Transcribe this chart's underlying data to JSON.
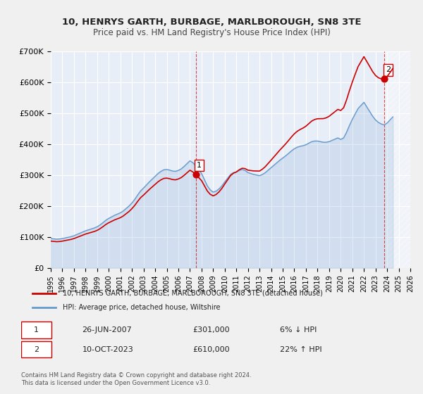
{
  "title": "10, HENRYS GARTH, BURBAGE, MARLBOROUGH, SN8 3TE",
  "subtitle": "Price paid vs. HM Land Registry's House Price Index (HPI)",
  "hpi_label": "HPI: Average price, detached house, Wiltshire",
  "property_label": "10, HENRYS GARTH, BURBAGE, MARLBOROUGH, SN8 3TE (detached house)",
  "hpi_color": "#6699cc",
  "property_color": "#cc0000",
  "background_color": "#dce6f1",
  "plot_bg_color": "#e8eef7",
  "grid_color": "#ffffff",
  "annotation1_date": "26-JUN-2007",
  "annotation1_price": "£301,000",
  "annotation1_hpi": "6% ↓ HPI",
  "annotation1_year": 2007.5,
  "annotation1_value": 301000,
  "annotation2_date": "10-OCT-2023",
  "annotation2_price": "£610,000",
  "annotation2_hpi": "22% ↑ HPI",
  "annotation2_year": 2023.78,
  "annotation2_value": 610000,
  "ylim": [
    0,
    700000
  ],
  "xlim_start": 1995,
  "xlim_end": 2026,
  "footer_text": "Contains HM Land Registry data © Crown copyright and database right 2024.\nThis data is licensed under the Open Government Licence v3.0.",
  "hpi_data": {
    "years": [
      1995.0,
      1995.25,
      1995.5,
      1995.75,
      1996.0,
      1996.25,
      1996.5,
      1996.75,
      1997.0,
      1997.25,
      1997.5,
      1997.75,
      1998.0,
      1998.25,
      1998.5,
      1998.75,
      1999.0,
      1999.25,
      1999.5,
      1999.75,
      2000.0,
      2000.25,
      2000.5,
      2000.75,
      2001.0,
      2001.25,
      2001.5,
      2001.75,
      2002.0,
      2002.25,
      2002.5,
      2002.75,
      2003.0,
      2003.25,
      2003.5,
      2003.75,
      2004.0,
      2004.25,
      2004.5,
      2004.75,
      2005.0,
      2005.25,
      2005.5,
      2005.75,
      2006.0,
      2006.25,
      2006.5,
      2006.75,
      2007.0,
      2007.25,
      2007.5,
      2007.75,
      2008.0,
      2008.25,
      2008.5,
      2008.75,
      2009.0,
      2009.25,
      2009.5,
      2009.75,
      2010.0,
      2010.25,
      2010.5,
      2010.75,
      2011.0,
      2011.25,
      2011.5,
      2011.75,
      2012.0,
      2012.25,
      2012.5,
      2012.75,
      2013.0,
      2013.25,
      2013.5,
      2013.75,
      2014.0,
      2014.25,
      2014.5,
      2014.75,
      2015.0,
      2015.25,
      2015.5,
      2015.75,
      2016.0,
      2016.25,
      2016.5,
      2016.75,
      2017.0,
      2017.25,
      2017.5,
      2017.75,
      2018.0,
      2018.25,
      2018.5,
      2018.75,
      2019.0,
      2019.25,
      2019.5,
      2019.75,
      2020.0,
      2020.25,
      2020.5,
      2020.75,
      2021.0,
      2021.25,
      2021.5,
      2021.75,
      2022.0,
      2022.25,
      2022.5,
      2022.75,
      2023.0,
      2023.25,
      2023.5,
      2023.75,
      2024.0,
      2024.25,
      2024.5
    ],
    "values": [
      95000,
      94000,
      93000,
      93500,
      95000,
      97000,
      99000,
      101000,
      104000,
      108000,
      112000,
      116000,
      120000,
      123000,
      126000,
      129000,
      133000,
      139000,
      146000,
      154000,
      160000,
      165000,
      170000,
      174000,
      178000,
      184000,
      192000,
      200000,
      210000,
      222000,
      236000,
      249000,
      258000,
      268000,
      278000,
      287000,
      296000,
      305000,
      312000,
      317000,
      318000,
      316000,
      313000,
      312000,
      315000,
      320000,
      328000,
      337000,
      346000,
      340000,
      330000,
      318000,
      305000,
      285000,
      265000,
      252000,
      245000,
      248000,
      255000,
      265000,
      278000,
      290000,
      302000,
      308000,
      310000,
      315000,
      318000,
      315000,
      308000,
      305000,
      302000,
      300000,
      298000,
      302000,
      308000,
      316000,
      324000,
      332000,
      340000,
      348000,
      355000,
      362000,
      370000,
      378000,
      385000,
      390000,
      393000,
      395000,
      398000,
      403000,
      408000,
      410000,
      410000,
      408000,
      406000,
      406000,
      408000,
      412000,
      416000,
      420000,
      415000,
      420000,
      438000,
      460000,
      480000,
      498000,
      515000,
      525000,
      535000,
      520000,
      505000,
      490000,
      478000,
      470000,
      465000,
      462000,
      468000,
      478000,
      488000
    ]
  },
  "property_data": {
    "years": [
      2007.5,
      2023.78
    ],
    "values": [
      301000,
      610000
    ]
  }
}
